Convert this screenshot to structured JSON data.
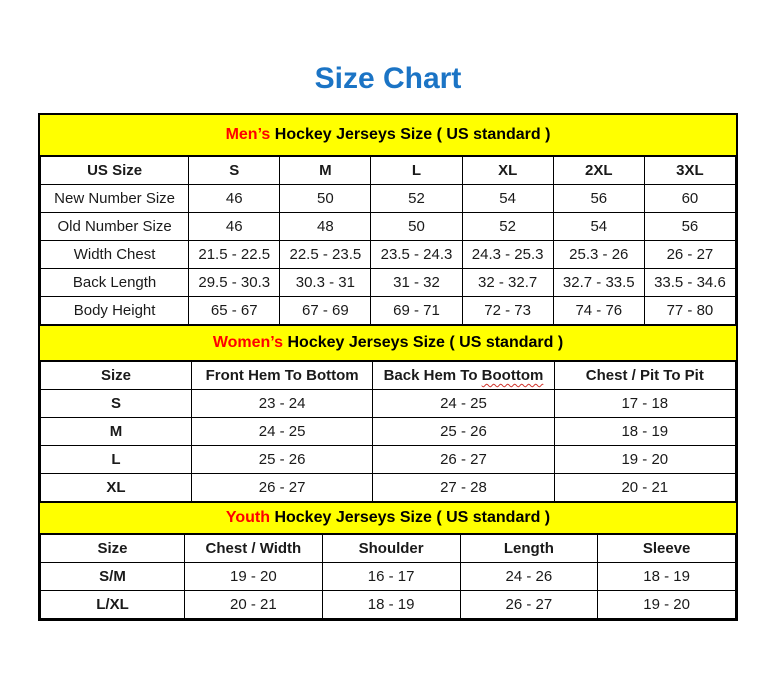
{
  "title": "Size Chart",
  "colors": {
    "title_blue": "#1b74c5",
    "accent_red": "#ff0000",
    "band_yellow": "#ffff00",
    "border_black": "#000000",
    "spellcheck_red": "#d0342c"
  },
  "sections": [
    {
      "id": "mens",
      "heading": {
        "highlight": "Men’s",
        "rest": " Hockey Jerseys Size ( US standard )"
      },
      "columns": [
        "US Size",
        "S",
        "M",
        "L",
        "XL",
        "2XL",
        "3XL"
      ],
      "rows": [
        {
          "label": "New Number Size",
          "values": [
            "46",
            "50",
            "52",
            "54",
            "56",
            "60"
          ]
        },
        {
          "label": "Old Number Size",
          "values": [
            "46",
            "48",
            "50",
            "52",
            "54",
            "56"
          ]
        },
        {
          "label": "Width Chest",
          "values": [
            "21.5 - 22.5",
            "22.5 - 23.5",
            "23.5 - 24.3",
            "24.3 - 25.3",
            "25.3 - 26",
            "26 - 27"
          ]
        },
        {
          "label": "Back Length",
          "values": [
            "29.5 - 30.3",
            "30.3 - 31",
            "31 - 32",
            "32 - 32.7",
            "32.7 - 33.5",
            "33.5 - 34.6"
          ]
        },
        {
          "label": "Body Height",
          "values": [
            "65 - 67",
            "67 - 69",
            "69 - 71",
            "72 - 73",
            "74 - 76",
            "77 - 80"
          ]
        }
      ]
    },
    {
      "id": "womens",
      "heading": {
        "highlight": "Women’s",
        "rest": " Hockey Jerseys Size ( US standard )"
      },
      "columns": [
        "Size",
        "Front Hem To Bottom",
        "Back Hem To Boottom",
        "Chest / Pit To Pit"
      ],
      "rows": [
        {
          "label": "S",
          "values": [
            "23 - 24",
            "24 - 25",
            "17 - 18"
          ]
        },
        {
          "label": "M",
          "values": [
            "24 - 25",
            "25 - 26",
            "18 - 19"
          ]
        },
        {
          "label": "L",
          "values": [
            "25 - 26",
            "26 - 27",
            "19 - 20"
          ]
        },
        {
          "label": "XL",
          "values": [
            "26 - 27",
            "27 - 28",
            "20 - 21"
          ]
        }
      ]
    },
    {
      "id": "youth",
      "heading": {
        "highlight": "Youth",
        "rest": " Hockey Jerseys Size ( US standard )"
      },
      "columns": [
        "Size",
        "Chest / Width",
        "Shoulder",
        "Length",
        "Sleeve"
      ],
      "rows": [
        {
          "label": "S/M",
          "values": [
            "19 - 20",
            "16 - 17",
            "24 - 26",
            "18 - 19"
          ]
        },
        {
          "label": "L/XL",
          "values": [
            "20 - 21",
            "18 - 19",
            "26 - 27",
            "19 - 20"
          ]
        }
      ]
    }
  ],
  "spellcheck": [
    {
      "section": "womens",
      "column": 2,
      "word": "Boottom"
    }
  ]
}
